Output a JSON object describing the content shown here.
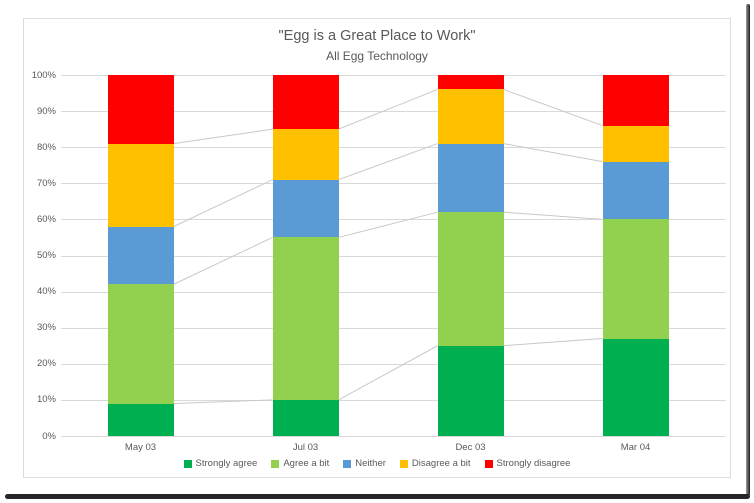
{
  "chart_data": {
    "type": "bar",
    "stacked": true,
    "title": "\"Egg is a Great Place to Work\"",
    "subtitle": "All Egg Technology",
    "categories": [
      "May 03",
      "Jul 03",
      "Dec 03",
      "Mar 04"
    ],
    "series": [
      {
        "name": "Strongly agree",
        "color": "#00B050",
        "values": [
          9,
          10,
          25,
          27
        ]
      },
      {
        "name": "Agree a bit",
        "color": "#92D050",
        "values": [
          33,
          45,
          37,
          33
        ]
      },
      {
        "name": "Neither",
        "color": "#5B9BD5",
        "values": [
          16,
          16,
          19,
          16
        ]
      },
      {
        "name": "Disagree a bit",
        "color": "#FFC000",
        "values": [
          23,
          14,
          15,
          10
        ]
      },
      {
        "name": "Strongly disagree",
        "color": "#FF0000",
        "values": [
          19,
          15,
          4,
          14
        ]
      }
    ],
    "xlabel": "",
    "ylabel": "",
    "ylim": [
      0,
      100
    ],
    "y_ticks": [
      "0%",
      "10%",
      "20%",
      "30%",
      "40%",
      "50%",
      "60%",
      "70%",
      "80%",
      "90%",
      "100%"
    ],
    "grid": true,
    "legend_position": "bottom",
    "series_lines": true
  },
  "style": {
    "background": "#FFFFFF",
    "text_color": "#595959",
    "gridline_color": "#D9D9D9",
    "series_line_color": "#C9C9C9",
    "chart_border_color": "#DCDCDC",
    "shadow_color": "#262626"
  }
}
